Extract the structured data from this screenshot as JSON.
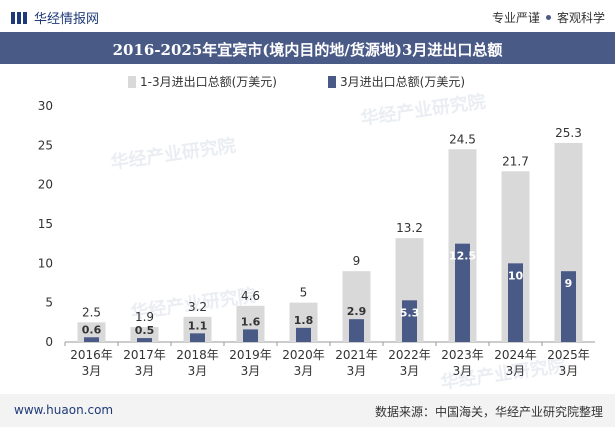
{
  "header": {
    "brand": "华经情报网",
    "tagline_left": "专业严谨",
    "tagline_right": "客观科学"
  },
  "watermark": "华经产业研究院",
  "chart_data": {
    "type": "bar",
    "title": "2016-2025年宜宾市(境内目的地/货源地)3月进出口总额",
    "categories": [
      "2016年\n3月",
      "2017年\n3月",
      "2018年\n3月",
      "2019年\n3月",
      "2020年\n3月",
      "2021年\n3月",
      "2022年\n3月",
      "2023年\n3月",
      "2024年\n3月",
      "2025年\n3月"
    ],
    "series": [
      {
        "name": "1-3月进出口总额(万美元)",
        "values": [
          2.5,
          1.9,
          3.2,
          4.6,
          5,
          9,
          13.2,
          24.5,
          21.7,
          25.3
        ],
        "color": "#d9d9d9"
      },
      {
        "name": "3月进出口总额(万美元)",
        "values": [
          0.6,
          0.5,
          1.1,
          1.6,
          1.8,
          2.9,
          5.3,
          12.5,
          10,
          9
        ],
        "color": "#4a5a86"
      }
    ],
    "ylim": [
      0,
      30
    ],
    "yticks": [
      0,
      5,
      10,
      15,
      20,
      25,
      30
    ],
    "legend_position": "top-left",
    "grid": false
  },
  "footer": {
    "website": "www.huaon.com",
    "source": "数据来源：中国海关，华经产业研究院整理"
  }
}
